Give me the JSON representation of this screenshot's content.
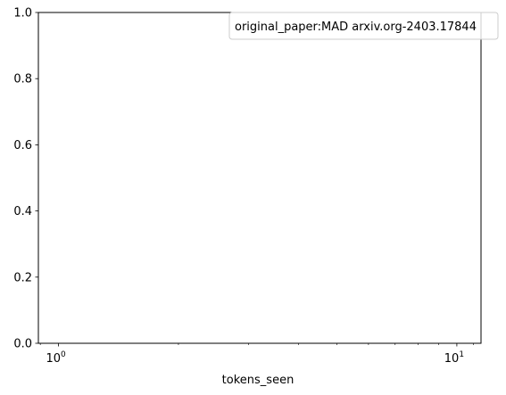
{
  "chart_data": {
    "type": "line",
    "title": "",
    "xlabel": "tokens_seen",
    "ylabel": "",
    "xscale": "log",
    "xlim": [
      0.89,
      11.5
    ],
    "ylim": [
      0,
      1
    ],
    "x_major_ticks": [
      {
        "value": 1,
        "base": "10",
        "exp": "0"
      },
      {
        "value": 10,
        "base": "10",
        "exp": "1"
      }
    ],
    "x_minor_ticks": [
      0.9,
      2,
      3,
      4,
      5,
      6,
      7,
      8,
      9,
      11
    ],
    "y_ticks": [
      0.0,
      0.2,
      0.4,
      0.6,
      0.8,
      1.0
    ],
    "y_tick_labels": [
      "0.0",
      "0.2",
      "0.4",
      "0.6",
      "0.8",
      "1.0"
    ],
    "legend": {
      "placement": "upper right",
      "entries": [
        "original_paper:MAD arxiv.org-2403.17844"
      ]
    },
    "grid": false,
    "series": []
  }
}
